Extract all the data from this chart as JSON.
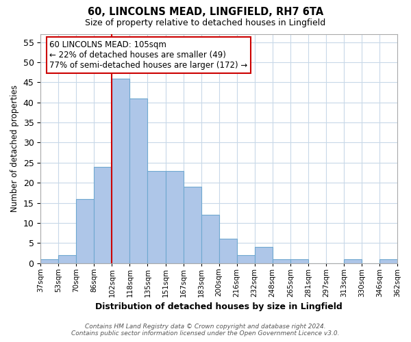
{
  "title": "60, LINCOLNS MEAD, LINGFIELD, RH7 6TA",
  "subtitle": "Size of property relative to detached houses in Lingfield",
  "xlabel": "Distribution of detached houses by size in Lingfield",
  "ylabel": "Number of detached properties",
  "bin_labels": [
    "37sqm",
    "53sqm",
    "70sqm",
    "86sqm",
    "102sqm",
    "118sqm",
    "135sqm",
    "151sqm",
    "167sqm",
    "183sqm",
    "200sqm",
    "216sqm",
    "232sqm",
    "248sqm",
    "265sqm",
    "281sqm",
    "297sqm",
    "313sqm",
    "330sqm",
    "346sqm",
    "362sqm"
  ],
  "bar_heights": [
    1,
    2,
    16,
    24,
    46,
    41,
    23,
    23,
    19,
    12,
    6,
    2,
    4,
    1,
    1,
    0,
    0,
    1,
    0,
    1
  ],
  "red_line_bar_index": 4,
  "bar_color": "#aec6e8",
  "bar_edge_color": "#6fa8d0",
  "red_line_color": "#cc0000",
  "ylim": [
    0,
    57
  ],
  "yticks": [
    0,
    5,
    10,
    15,
    20,
    25,
    30,
    35,
    40,
    45,
    50,
    55
  ],
  "annotation_text": "60 LINCOLNS MEAD: 105sqm\n← 22% of detached houses are smaller (49)\n77% of semi-detached houses are larger (172) →",
  "annotation_box_color": "#ffffff",
  "annotation_box_edge": "#cc0000",
  "footer_line1": "Contains HM Land Registry data © Crown copyright and database right 2024.",
  "footer_line2": "Contains public sector information licensed under the Open Government Licence v3.0.",
  "background_color": "#ffffff",
  "grid_color": "#c8d8e8"
}
